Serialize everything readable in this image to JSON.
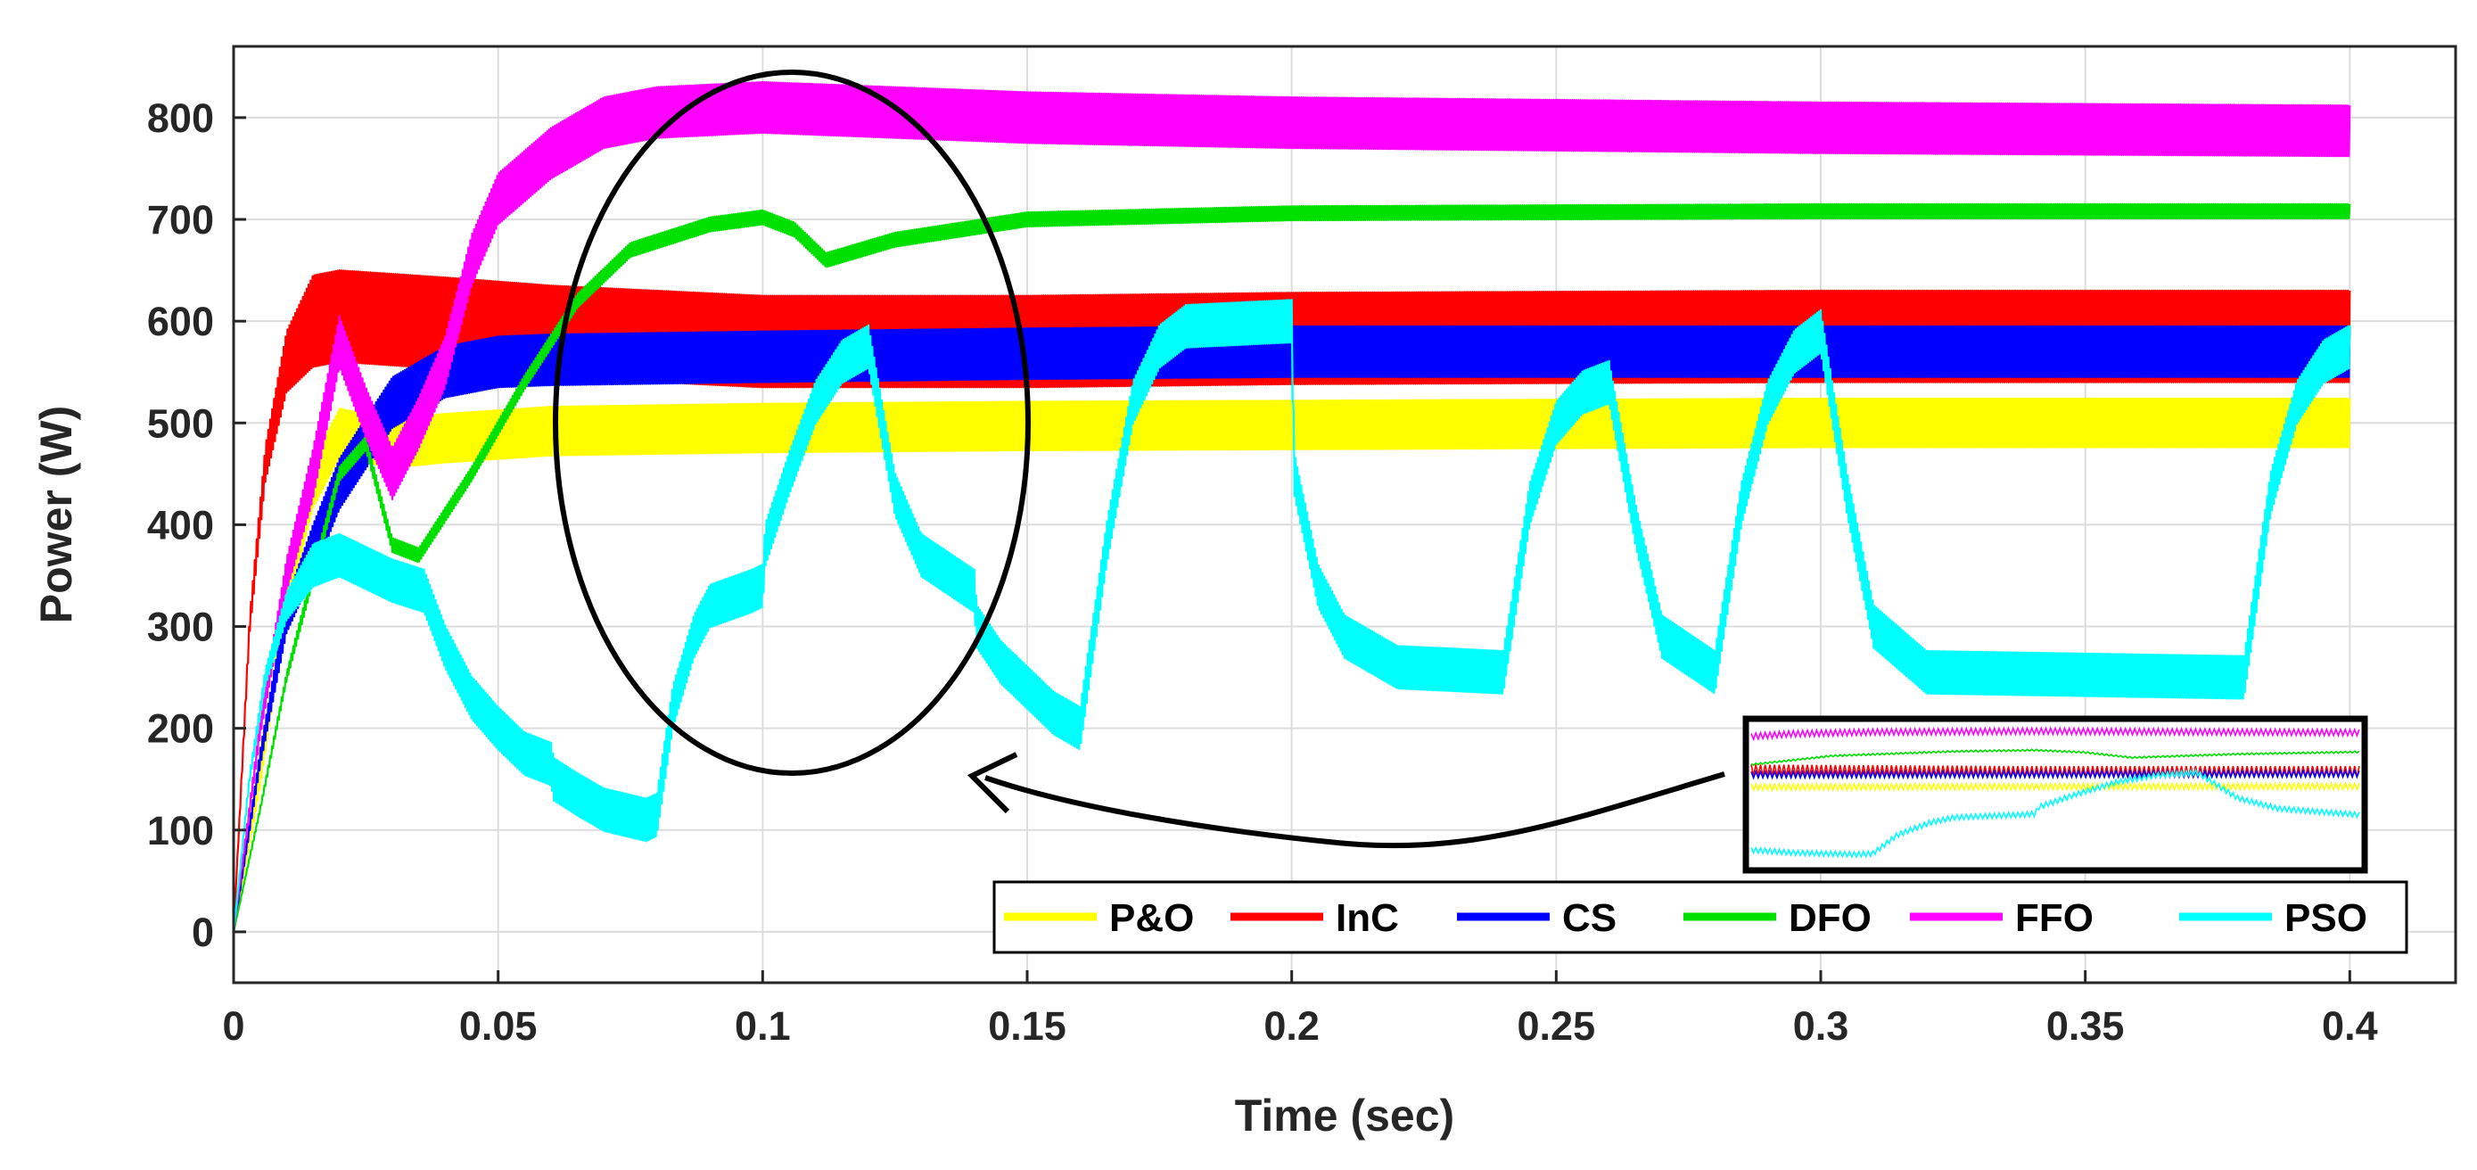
{
  "chart_data": {
    "type": "line",
    "title": "",
    "xlabel": "Time (sec)",
    "ylabel": "Power (W)",
    "xlim": [
      0,
      0.42
    ],
    "ylim": [
      -50,
      870
    ],
    "xticks": [
      0,
      0.05,
      0.1,
      0.15,
      0.2,
      0.25,
      0.3,
      0.35,
      0.4
    ],
    "xtick_labels": [
      "0",
      "0.05",
      "0.1",
      "0.15",
      "0.2",
      "0.25",
      "0.3",
      "0.35",
      "0.4"
    ],
    "yticks": [
      0,
      100,
      200,
      300,
      400,
      500,
      600,
      700,
      800
    ],
    "ytick_labels": [
      "0",
      "100",
      "200",
      "300",
      "400",
      "500",
      "600",
      "700",
      "800"
    ],
    "grid": true,
    "legend_position": "bottom-right",
    "series": [
      {
        "name": "P&O",
        "color": "#ffff00",
        "ripple": 48,
        "x": [
          0,
          0.005,
          0.01,
          0.015,
          0.02,
          0.03,
          0.04,
          0.06,
          0.1,
          0.15,
          0.2,
          0.3,
          0.4
        ],
        "y": [
          0,
          150,
          330,
          440,
          490,
          480,
          485,
          492,
          495,
          497,
          498,
          500,
          500
        ]
      },
      {
        "name": "InC",
        "color": "#ff0000",
        "ripple": 90,
        "x": [
          0,
          0.003,
          0.006,
          0.01,
          0.015,
          0.02,
          0.04,
          0.06,
          0.1,
          0.15,
          0.2,
          0.3,
          0.4
        ],
        "y": [
          0,
          300,
          460,
          560,
          600,
          605,
          598,
          590,
          580,
          580,
          583,
          585,
          585
        ]
      },
      {
        "name": "CS",
        "color": "#0000ff",
        "ripple": 50,
        "x": [
          0,
          0.005,
          0.01,
          0.02,
          0.03,
          0.04,
          0.05,
          0.06,
          0.1,
          0.15,
          0.2,
          0.3,
          0.4
        ],
        "y": [
          0,
          170,
          310,
          440,
          520,
          550,
          560,
          562,
          565,
          568,
          570,
          570,
          570
        ]
      },
      {
        "name": "DFO",
        "color": "#00e000",
        "ripple": 14,
        "x": [
          0,
          0.005,
          0.01,
          0.015,
          0.02,
          0.025,
          0.03,
          0.035,
          0.045,
          0.055,
          0.065,
          0.075,
          0.09,
          0.1,
          0.106,
          0.112,
          0.125,
          0.15,
          0.2,
          0.3,
          0.4
        ],
        "y": [
          0,
          120,
          250,
          350,
          450,
          480,
          380,
          370,
          450,
          540,
          620,
          670,
          695,
          702,
          690,
          660,
          680,
          700,
          706,
          708,
          708
        ]
      },
      {
        "name": "FFO",
        "color": "#ff00ff",
        "ripple": 50,
        "x": [
          0,
          0.005,
          0.01,
          0.015,
          0.02,
          0.025,
          0.03,
          0.035,
          0.04,
          0.045,
          0.05,
          0.06,
          0.07,
          0.08,
          0.1,
          0.15,
          0.2,
          0.3,
          0.4
        ],
        "y": [
          0,
          200,
          350,
          450,
          580,
          510,
          450,
          500,
          560,
          660,
          720,
          765,
          795,
          805,
          810,
          800,
          795,
          790,
          787
        ]
      },
      {
        "name": "PSO",
        "color": "#00ffff",
        "ripple": 42,
        "x": [
          0,
          0.003,
          0.006,
          0.01,
          0.015,
          0.02,
          0.03,
          0.036,
          0.04,
          0.045,
          0.05,
          0.055,
          0.06,
          0.0605,
          0.065,
          0.07,
          0.078,
          0.08,
          0.083,
          0.087,
          0.09,
          0.098,
          0.1,
          0.1005,
          0.105,
          0.11,
          0.115,
          0.12,
          0.125,
          0.13,
          0.14,
          0.1405,
          0.145,
          0.15,
          0.155,
          0.16,
          0.165,
          0.17,
          0.175,
          0.18,
          0.2,
          0.2005,
          0.205,
          0.21,
          0.22,
          0.24,
          0.245,
          0.25,
          0.255,
          0.26,
          0.265,
          0.27,
          0.28,
          0.285,
          0.29,
          0.295,
          0.3,
          0.305,
          0.31,
          0.32,
          0.38,
          0.385,
          0.39,
          0.395,
          0.4
        ],
        "y": [
          0,
          150,
          250,
          320,
          360,
          370,
          345,
          335,
          280,
          230,
          200,
          175,
          165,
          150,
          135,
          120,
          110,
          115,
          220,
          290,
          320,
          335,
          340,
          380,
          450,
          520,
          560,
          575,
          430,
          370,
          335,
          300,
          265,
          240,
          215,
          200,
          380,
          520,
          575,
          595,
          600,
          450,
          340,
          290,
          260,
          255,
          420,
          500,
          530,
          540,
          400,
          290,
          255,
          420,
          520,
          570,
          590,
          430,
          300,
          255,
          250,
          430,
          520,
          560,
          575
        ]
      }
    ],
    "inset": {
      "description_hidden": true
    }
  }
}
